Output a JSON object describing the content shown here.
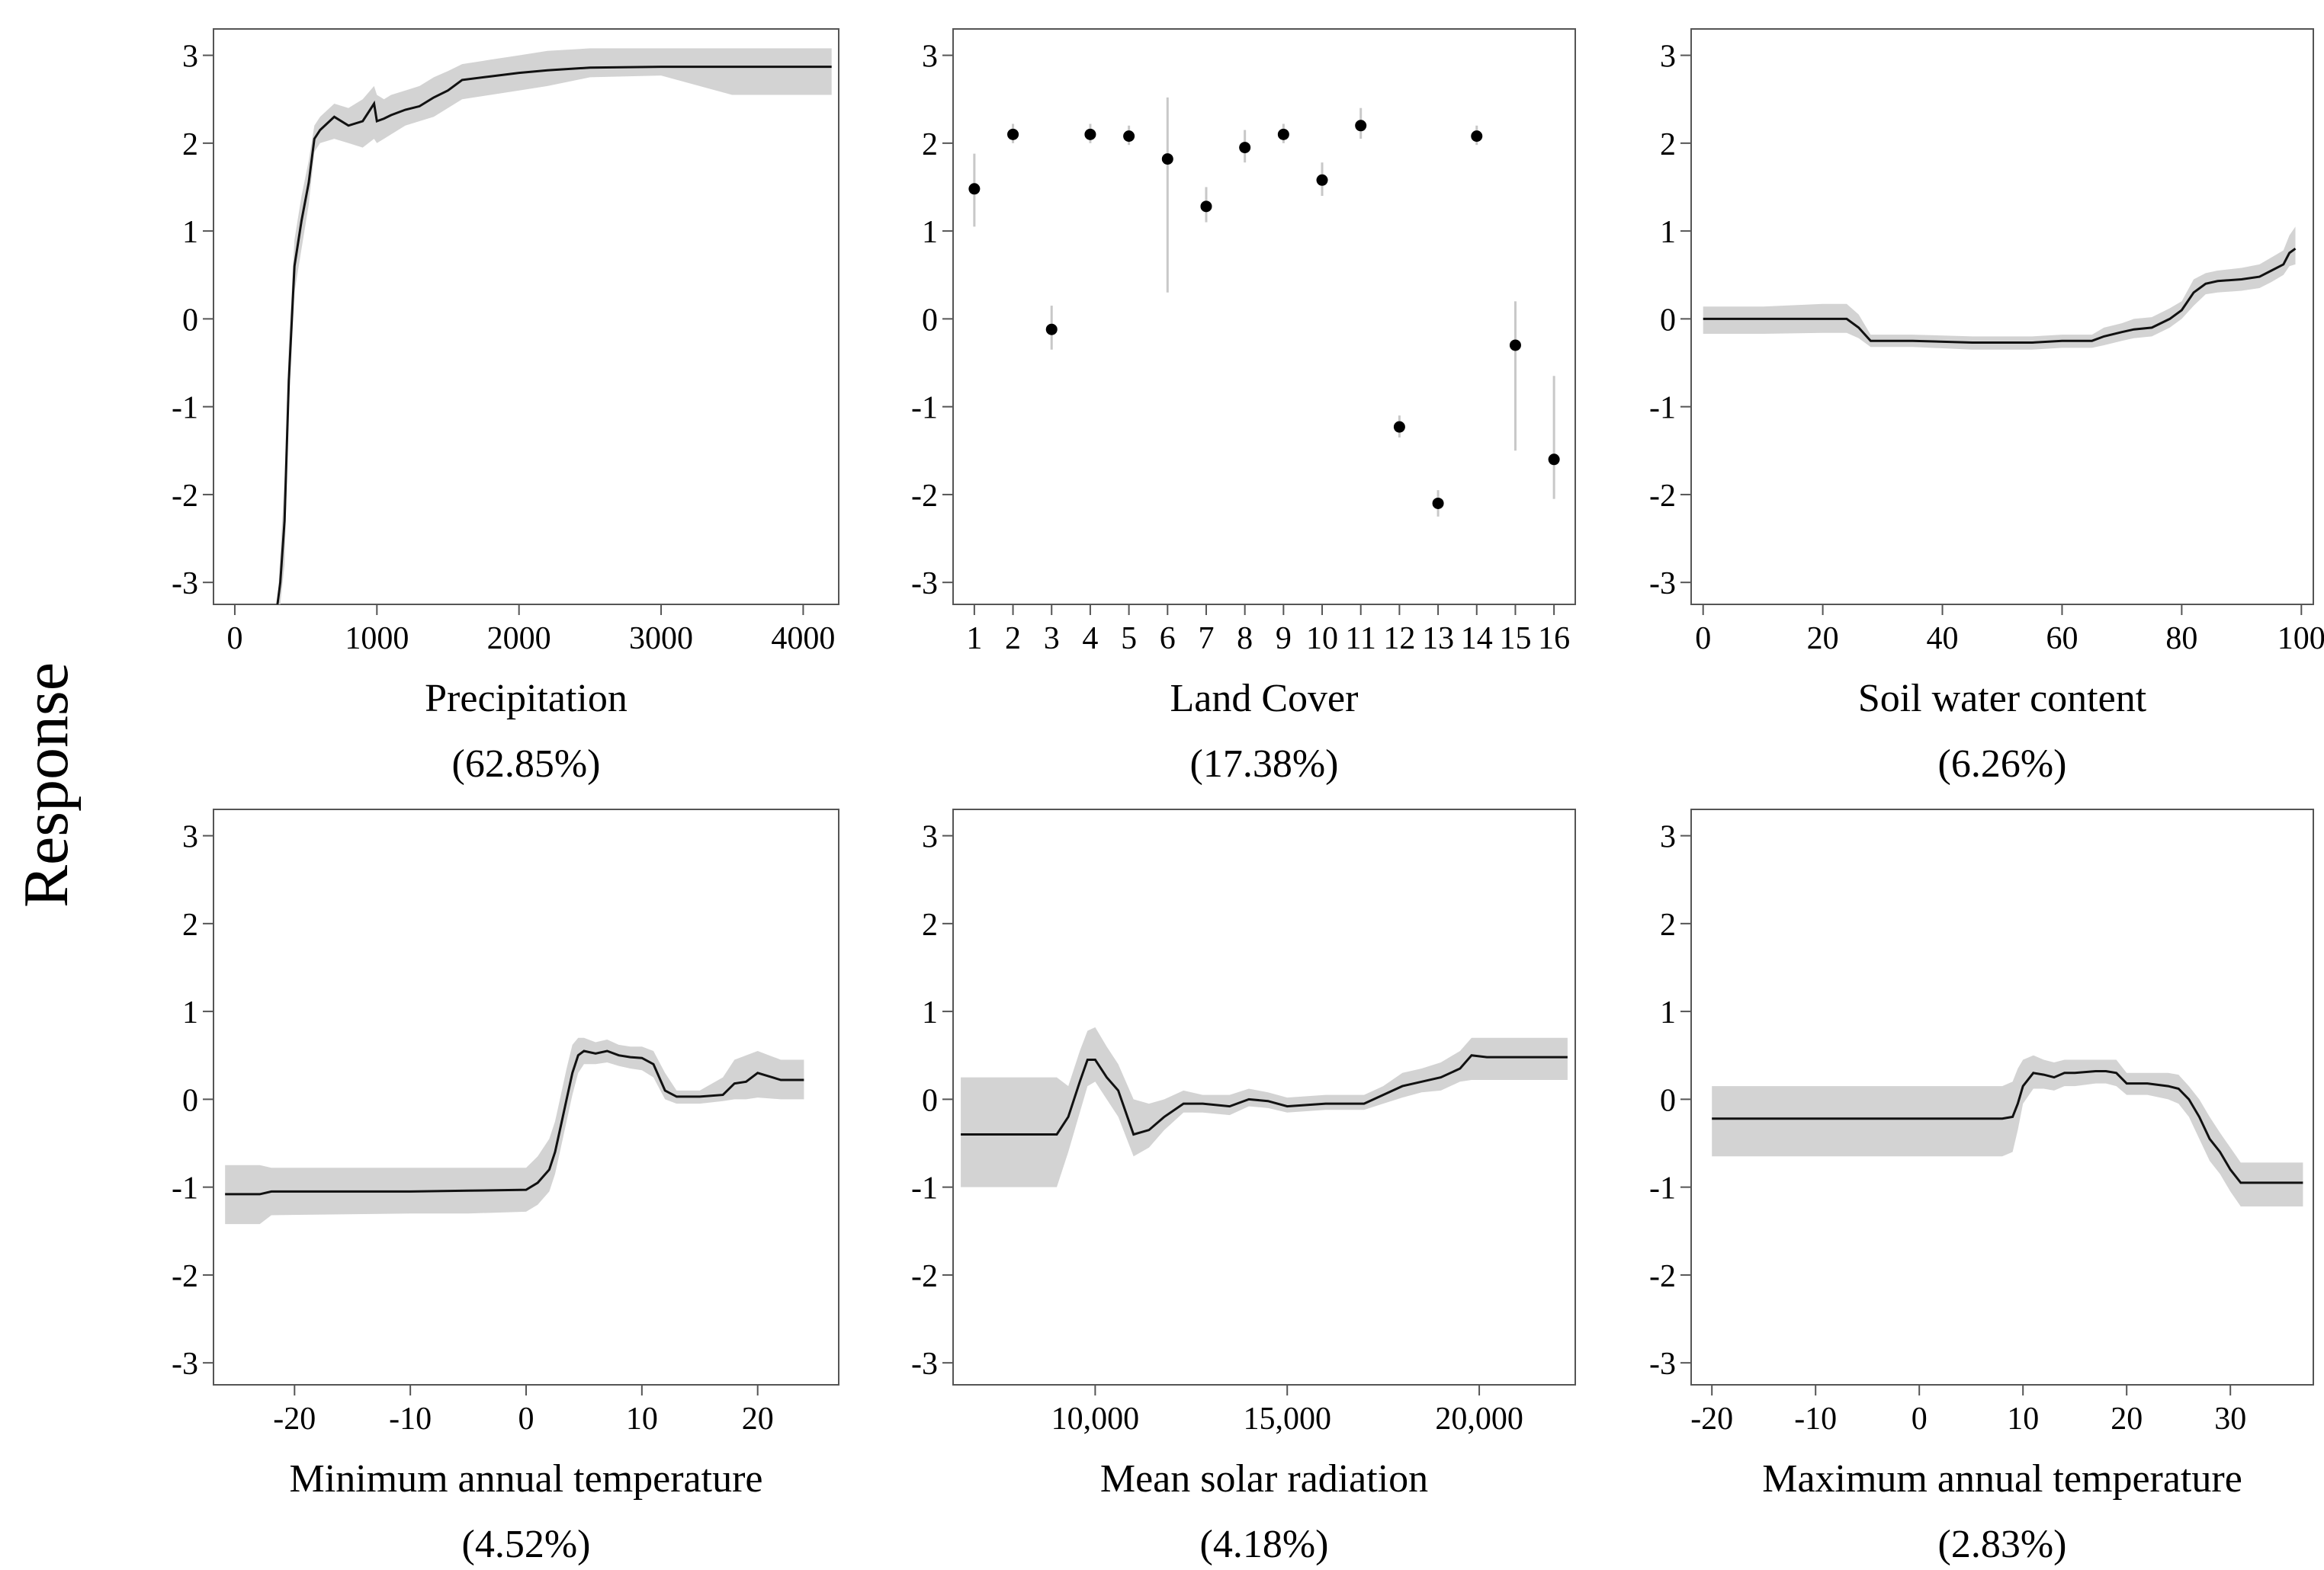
{
  "figure": {
    "ylabel": "Response"
  },
  "colors": {
    "line": "#111111",
    "band": "#d3d3d3",
    "frame": "#555555",
    "errorbar": "#c8c8c8",
    "point": "#000000"
  },
  "chart_data": [
    {
      "type": "line",
      "title": "Precipitation",
      "importance": "(62.85%)",
      "xlabel": "Precipitation",
      "ylabel": "Response",
      "xlim": [
        -150,
        4250
      ],
      "ylim": [
        -3.25,
        3.3
      ],
      "xticks": [
        0,
        1000,
        2000,
        3000,
        4000
      ],
      "xtick_labels": [
        "0",
        "1000",
        "2000",
        "3000",
        "4000"
      ],
      "yticks": [
        3,
        2,
        1,
        0,
        -1,
        -2,
        -3
      ],
      "ytick_labels": [
        "3",
        "2",
        "1",
        "0",
        "-1",
        "-2",
        "-3"
      ],
      "x": [
        300,
        320,
        350,
        380,
        420,
        470,
        520,
        560,
        600,
        700,
        800,
        900,
        980,
        1000,
        1050,
        1100,
        1200,
        1300,
        1400,
        1500,
        1600,
        1800,
        2000,
        2200,
        2500,
        3000,
        3500,
        4200
      ],
      "y": [
        -3.25,
        -3.0,
        -2.3,
        -0.7,
        0.6,
        1.12,
        1.55,
        2.05,
        2.15,
        2.3,
        2.2,
        2.25,
        2.45,
        2.25,
        2.28,
        2.32,
        2.38,
        2.42,
        2.52,
        2.6,
        2.72,
        2.76,
        2.8,
        2.83,
        2.86,
        2.87,
        2.87,
        2.87
      ],
      "lower": [
        -3.25,
        -3.25,
        -2.8,
        -1.0,
        0.3,
        0.8,
        1.3,
        1.9,
        2.0,
        2.05,
        2.0,
        1.95,
        2.05,
        2.0,
        2.05,
        2.1,
        2.2,
        2.25,
        2.3,
        2.4,
        2.5,
        2.55,
        2.6,
        2.65,
        2.75,
        2.77,
        2.55,
        2.55
      ],
      "upper": [
        -3.25,
        -2.7,
        -1.8,
        -0.3,
        0.9,
        1.4,
        1.8,
        2.2,
        2.3,
        2.45,
        2.4,
        2.5,
        2.65,
        2.55,
        2.5,
        2.55,
        2.6,
        2.65,
        2.75,
        2.82,
        2.9,
        2.95,
        3.0,
        3.05,
        3.08,
        3.08,
        3.08,
        3.08
      ]
    },
    {
      "type": "scatter",
      "title": "Land Cover",
      "importance": "(17.38%)",
      "xlabel": "Land Cover",
      "ylabel": "Response",
      "xlim": [
        0.45,
        16.55
      ],
      "ylim": [
        -3.25,
        3.3
      ],
      "categories": [
        "1",
        "2",
        "3",
        "4",
        "5",
        "6",
        "7",
        "8",
        "9",
        "10",
        "11",
        "12",
        "13",
        "14",
        "15",
        "16"
      ],
      "values": [
        1.48,
        2.1,
        -0.12,
        2.1,
        2.08,
        1.82,
        1.28,
        1.95,
        2.1,
        1.58,
        2.2,
        -1.23,
        -2.1,
        2.08,
        -0.3,
        -1.6
      ],
      "lower": [
        1.05,
        2.0,
        -0.35,
        2.0,
        1.98,
        0.3,
        1.1,
        1.78,
        2.0,
        1.4,
        2.05,
        -1.35,
        -2.25,
        1.98,
        -1.5,
        -2.05
      ],
      "upper": [
        1.88,
        2.22,
        0.15,
        2.22,
        2.2,
        2.52,
        1.5,
        2.15,
        2.22,
        1.78,
        2.4,
        -1.1,
        -1.95,
        2.2,
        0.2,
        -0.65
      ],
      "yticks": [
        3,
        2,
        1,
        0,
        -1,
        -2,
        -3
      ],
      "ytick_labels": [
        "3",
        "2",
        "1",
        "0",
        "-1",
        "-2",
        "-3"
      ]
    },
    {
      "type": "line",
      "title": "Soil water content",
      "importance": "(6.26%)",
      "xlabel": "Soil water content",
      "ylabel": "Response",
      "xlim": [
        -2,
        102
      ],
      "ylim": [
        -3.25,
        3.3
      ],
      "xticks": [
        0,
        20,
        40,
        60,
        80,
        100
      ],
      "xtick_labels": [
        "0",
        "20",
        "40",
        "60",
        "80",
        "100"
      ],
      "yticks": [
        3,
        2,
        1,
        0,
        -1,
        -2,
        -3
      ],
      "ytick_labels": [
        "3",
        "2",
        "1",
        "0",
        "-1",
        "-2",
        "-3"
      ],
      "x": [
        0,
        10,
        20,
        24,
        26,
        28,
        35,
        45,
        55,
        60,
        65,
        67,
        70,
        72,
        75,
        78,
        80,
        82,
        84,
        86,
        90,
        93,
        95,
        97,
        98,
        99
      ],
      "y": [
        0.0,
        0.0,
        0.0,
        0.0,
        -0.1,
        -0.25,
        -0.25,
        -0.27,
        -0.27,
        -0.25,
        -0.25,
        -0.2,
        -0.15,
        -0.12,
        -0.1,
        0.0,
        0.1,
        0.3,
        0.4,
        0.43,
        0.45,
        0.48,
        0.55,
        0.62,
        0.75,
        0.8
      ],
      "lower": [
        -0.17,
        -0.17,
        -0.16,
        -0.16,
        -0.22,
        -0.32,
        -0.32,
        -0.35,
        -0.35,
        -0.33,
        -0.33,
        -0.3,
        -0.25,
        -0.22,
        -0.2,
        -0.1,
        0.0,
        0.15,
        0.28,
        0.3,
        0.32,
        0.35,
        0.42,
        0.5,
        0.6,
        0.62
      ],
      "upper": [
        0.14,
        0.14,
        0.17,
        0.17,
        0.05,
        -0.18,
        -0.18,
        -0.2,
        -0.2,
        -0.18,
        -0.18,
        -0.1,
        -0.05,
        0.0,
        0.02,
        0.12,
        0.2,
        0.45,
        0.52,
        0.55,
        0.58,
        0.62,
        0.7,
        0.78,
        0.95,
        1.05
      ]
    },
    {
      "type": "line",
      "title": "Minimum annual temperature",
      "importance": "(4.52%)",
      "xlabel": "Minimum annual temperature",
      "ylabel": "Response",
      "xlim": [
        -27,
        27
      ],
      "ylim": [
        -3.25,
        3.3
      ],
      "xticks": [
        -20,
        -10,
        0,
        10,
        20
      ],
      "xtick_labels": [
        "-20",
        "-10",
        "0",
        "10",
        "20"
      ],
      "yticks": [
        3,
        2,
        1,
        0,
        -1,
        -2,
        -3
      ],
      "ytick_labels": [
        "3",
        "2",
        "1",
        "0",
        "-1",
        "-2",
        "-3"
      ],
      "x": [
        -26,
        -23,
        -22,
        -10,
        -5,
        0,
        1,
        2,
        2.5,
        3,
        3.5,
        4,
        4.5,
        5,
        6,
        7,
        8,
        9,
        10,
        11,
        12,
        13,
        15,
        17,
        18,
        19,
        20,
        22,
        24
      ],
      "y": [
        -1.08,
        -1.08,
        -1.05,
        -1.05,
        -1.04,
        -1.03,
        -0.95,
        -0.8,
        -0.6,
        -0.3,
        0.0,
        0.3,
        0.5,
        0.55,
        0.52,
        0.55,
        0.5,
        0.48,
        0.47,
        0.4,
        0.1,
        0.03,
        0.03,
        0.05,
        0.18,
        0.2,
        0.3,
        0.22,
        0.22
      ],
      "lower": [
        -1.42,
        -1.42,
        -1.32,
        -1.3,
        -1.3,
        -1.28,
        -1.2,
        -1.05,
        -0.85,
        -0.55,
        -0.25,
        0.05,
        0.3,
        0.4,
        0.4,
        0.42,
        0.38,
        0.35,
        0.33,
        0.25,
        0.0,
        -0.05,
        -0.05,
        -0.02,
        0.0,
        0.0,
        0.02,
        0.0,
        0.0
      ],
      "upper": [
        -0.75,
        -0.75,
        -0.78,
        -0.78,
        -0.78,
        -0.78,
        -0.65,
        -0.45,
        -0.25,
        0.05,
        0.35,
        0.62,
        0.7,
        0.7,
        0.65,
        0.68,
        0.62,
        0.6,
        0.6,
        0.55,
        0.3,
        0.1,
        0.1,
        0.25,
        0.45,
        0.5,
        0.55,
        0.45,
        0.45
      ]
    },
    {
      "type": "line",
      "title": "Mean solar radiation",
      "importance": "(4.18%)",
      "xlabel": "Mean solar radiation",
      "ylabel": "Response",
      "xlim": [
        6300,
        22500
      ],
      "ylim": [
        -3.25,
        3.3
      ],
      "xticks": [
        10000,
        15000,
        20000
      ],
      "xtick_labels": [
        "10,000",
        "15,000",
        "20,000"
      ],
      "yticks": [
        3,
        2,
        1,
        0,
        -1,
        -2,
        -3
      ],
      "ytick_labels": [
        "3",
        "2",
        "1",
        "0",
        "-1",
        "-2",
        "-3"
      ],
      "x": [
        6500,
        9000,
        9300,
        9600,
        9800,
        10000,
        10300,
        10600,
        11000,
        11400,
        11800,
        12300,
        12800,
        13500,
        14000,
        14500,
        15000,
        16000,
        17000,
        17500,
        18000,
        18500,
        19000,
        19500,
        19800,
        20200,
        22300
      ],
      "y": [
        -0.4,
        -0.4,
        -0.2,
        0.2,
        0.45,
        0.45,
        0.25,
        0.1,
        -0.4,
        -0.35,
        -0.2,
        -0.05,
        -0.05,
        -0.08,
        0.0,
        -0.02,
        -0.08,
        -0.05,
        -0.05,
        0.05,
        0.15,
        0.2,
        0.25,
        0.35,
        0.5,
        0.48,
        0.48
      ],
      "lower": [
        -1.0,
        -1.0,
        -0.6,
        -0.15,
        0.15,
        0.2,
        0.0,
        -0.2,
        -0.65,
        -0.55,
        -0.35,
        -0.15,
        -0.15,
        -0.18,
        -0.08,
        -0.1,
        -0.15,
        -0.12,
        -0.12,
        -0.05,
        0.02,
        0.08,
        0.1,
        0.2,
        0.22,
        0.22,
        0.22
      ],
      "upper": [
        0.25,
        0.25,
        0.15,
        0.55,
        0.78,
        0.82,
        0.6,
        0.4,
        0.0,
        -0.05,
        0.0,
        0.1,
        0.05,
        0.05,
        0.12,
        0.08,
        0.02,
        0.05,
        0.05,
        0.15,
        0.3,
        0.35,
        0.42,
        0.55,
        0.7,
        0.7,
        0.7
      ]
    },
    {
      "type": "line",
      "title": "Maximum annual temperature",
      "importance": "(2.83%)",
      "xlabel": "Maximum annual temperature",
      "ylabel": "Response",
      "xlim": [
        -22,
        38
      ],
      "ylim": [
        -3.25,
        3.3
      ],
      "xticks": [
        -20,
        -10,
        0,
        10,
        20,
        30
      ],
      "xtick_labels": [
        "-20",
        "-10",
        "0",
        "10",
        "20",
        "30"
      ],
      "yticks": [
        3,
        2,
        1,
        0,
        -1,
        -2,
        -3
      ],
      "ytick_labels": [
        "3",
        "2",
        "1",
        "0",
        "-1",
        "-2",
        "-3"
      ],
      "x": [
        -20,
        5,
        8,
        9,
        9.5,
        10,
        11,
        12,
        13,
        14,
        15,
        17,
        18,
        19,
        20,
        22,
        24,
        25,
        26,
        27,
        28,
        29,
        30,
        31,
        32,
        37
      ],
      "y": [
        -0.22,
        -0.22,
        -0.22,
        -0.2,
        -0.05,
        0.15,
        0.3,
        0.28,
        0.25,
        0.3,
        0.3,
        0.32,
        0.32,
        0.3,
        0.18,
        0.18,
        0.15,
        0.12,
        0.0,
        -0.2,
        -0.45,
        -0.6,
        -0.8,
        -0.95,
        -0.95,
        -0.95
      ],
      "lower": [
        -0.65,
        -0.65,
        -0.65,
        -0.6,
        -0.35,
        -0.05,
        0.12,
        0.12,
        0.1,
        0.15,
        0.15,
        0.18,
        0.18,
        0.15,
        0.05,
        0.05,
        0.0,
        -0.05,
        -0.2,
        -0.45,
        -0.7,
        -0.85,
        -1.05,
        -1.22,
        -1.22,
        -1.22
      ],
      "upper": [
        0.15,
        0.15,
        0.15,
        0.2,
        0.35,
        0.45,
        0.5,
        0.45,
        0.42,
        0.45,
        0.45,
        0.45,
        0.45,
        0.45,
        0.3,
        0.3,
        0.3,
        0.28,
        0.15,
        0.0,
        -0.2,
        -0.38,
        -0.55,
        -0.72,
        -0.72,
        -0.72
      ]
    }
  ]
}
